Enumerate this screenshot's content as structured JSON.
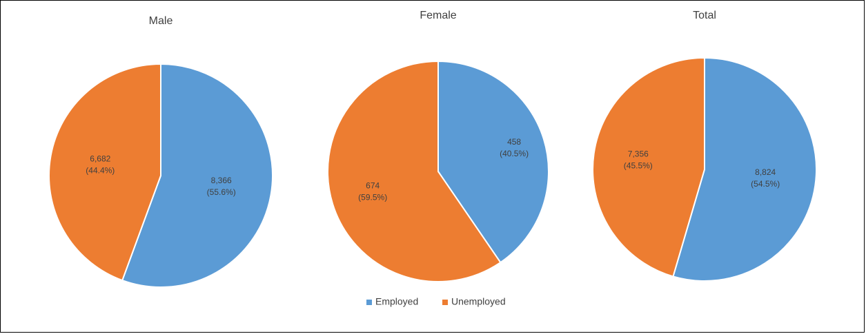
{
  "chart_data": {
    "type": "pie",
    "legend": {
      "placement": "bottom",
      "entries": [
        {
          "name": "Employed",
          "color": "#5B9BD5"
        },
        {
          "name": "Unemployed",
          "color": "#ED7D31"
        }
      ]
    },
    "charts": [
      {
        "title": "Male",
        "slices": [
          {
            "category": "Employed",
            "value": 8366,
            "value_label": "8,366",
            "percent_label": "(55.6%)"
          },
          {
            "category": "Unemployed",
            "value": 6682,
            "value_label": "6,682",
            "percent_label": "(44.4%)"
          }
        ]
      },
      {
        "title": "Female",
        "slices": [
          {
            "category": "Employed",
            "value": 458,
            "value_label": "458",
            "percent_label": "(40.5%)"
          },
          {
            "category": "Unemployed",
            "value": 674,
            "value_label": "674",
            "percent_label": "(59.5%)"
          }
        ]
      },
      {
        "title": "Total",
        "slices": [
          {
            "category": "Employed",
            "value": 8824,
            "value_label": "8,824",
            "percent_label": "(54.5%)"
          },
          {
            "category": "Unemployed",
            "value": 7356,
            "value_label": "7,356",
            "percent_label": "(45.5%)"
          }
        ]
      }
    ]
  }
}
